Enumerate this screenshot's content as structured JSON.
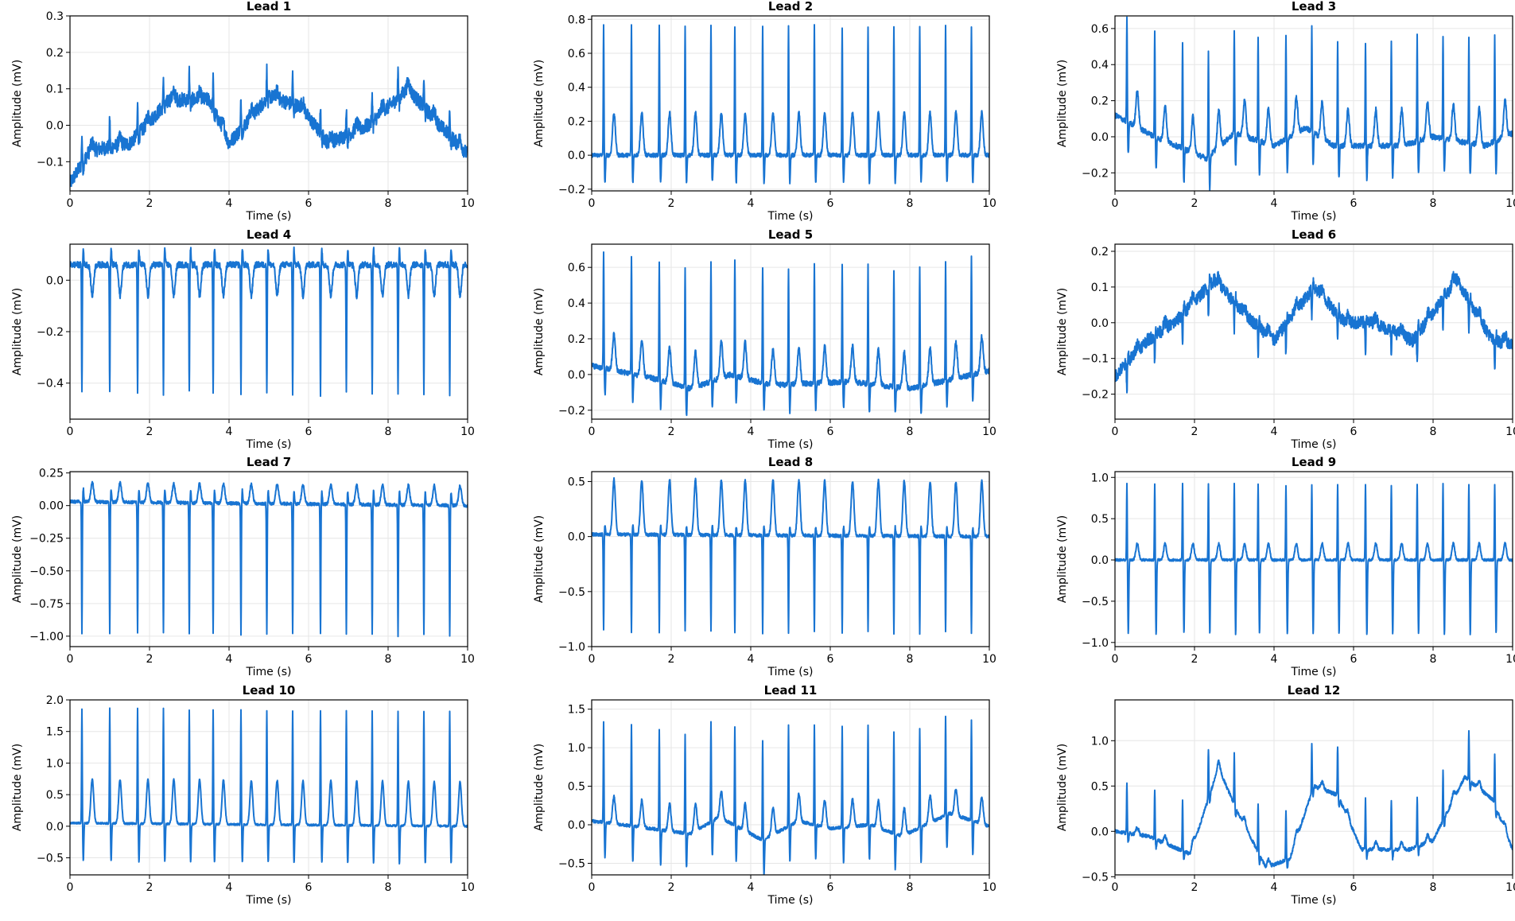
{
  "figure": {
    "line_color": "#1874d2",
    "grid_color": "#e6e6e6"
  },
  "chart_data": [
    {
      "type": "line",
      "title": "Lead 1",
      "xlabel": "Time (s)",
      "ylabel": "Amplitude (mV)",
      "xlim": [
        0,
        10
      ],
      "ylim": [
        -0.18,
        0.3
      ],
      "xticks": [
        0,
        2,
        4,
        6,
        8,
        10
      ],
      "yticks": [
        -0.1,
        0.0,
        0.1,
        0.2,
        0.3
      ],
      "ytick_labels": [
        "−0.1",
        "0.0",
        "0.1",
        "0.2",
        "0.3"
      ],
      "beat_times": [
        0.3,
        1.0,
        1.7,
        2.35,
        3.0,
        3.6,
        4.3,
        4.95,
        5.6,
        6.3,
        6.95,
        7.6,
        8.25,
        8.9,
        9.55
      ],
      "r_amp": 0.08,
      "s_amp": -0.02,
      "t_amp": 0.02,
      "noise": 0.02,
      "baseline": [
        [
          0,
          -0.16
        ],
        [
          0.5,
          -0.07
        ],
        [
          1.5,
          -0.05
        ],
        [
          2.5,
          0.07
        ],
        [
          3.5,
          0.07
        ],
        [
          4.0,
          -0.05
        ],
        [
          5.0,
          0.08
        ],
        [
          5.8,
          0.05
        ],
        [
          6.5,
          -0.05
        ],
        [
          7.5,
          0.0
        ],
        [
          8.5,
          0.1
        ],
        [
          9.3,
          0.0
        ],
        [
          10,
          -0.08
        ]
      ],
      "series": [
        {
          "name": "Lead 1"
        }
      ]
    },
    {
      "type": "line",
      "title": "Lead 2",
      "xlabel": "Time (s)",
      "ylabel": "Amplitude (mV)",
      "xlim": [
        0,
        10
      ],
      "ylim": [
        -0.21,
        0.82
      ],
      "xticks": [
        0,
        2,
        4,
        6,
        8,
        10
      ],
      "yticks": [
        -0.2,
        0.0,
        0.2,
        0.4,
        0.6,
        0.8
      ],
      "ytick_labels": [
        "−0.2",
        "0.0",
        "0.2",
        "0.4",
        "0.6",
        "0.8"
      ],
      "beat_times": [
        0.3,
        1.0,
        1.7,
        2.35,
        3.0,
        3.6,
        4.3,
        4.95,
        5.6,
        6.3,
        6.95,
        7.6,
        8.25,
        8.9,
        9.55
      ],
      "r_amp": 0.76,
      "s_amp": -0.16,
      "t_amp": 0.25,
      "noise": 0.012,
      "baseline": [
        [
          0,
          0.0
        ],
        [
          10,
          0.0
        ]
      ],
      "series": [
        {
          "name": "Lead 2"
        }
      ]
    },
    {
      "type": "line",
      "title": "Lead 3",
      "xlabel": "Time (s)",
      "ylabel": "Amplitude (mV)",
      "xlim": [
        0,
        10
      ],
      "ylim": [
        -0.3,
        0.67
      ],
      "xticks": [
        0,
        2,
        4,
        6,
        8,
        10
      ],
      "yticks": [
        -0.2,
        0.0,
        0.2,
        0.4,
        0.6
      ],
      "ytick_labels": [
        "−0.2",
        "0.0",
        "0.2",
        "0.4",
        "0.6"
      ],
      "beat_times": [
        0.3,
        1.0,
        1.7,
        2.35,
        3.0,
        3.6,
        4.3,
        4.95,
        5.6,
        6.3,
        6.95,
        7.6,
        8.25,
        8.9,
        9.55
      ],
      "r_amp": 0.58,
      "s_amp": -0.18,
      "t_amp": 0.2,
      "noise": 0.015,
      "baseline": [
        [
          0,
          0.12
        ],
        [
          1.0,
          0.0
        ],
        [
          2.3,
          -0.12
        ],
        [
          3.0,
          0.02
        ],
        [
          4.0,
          -0.05
        ],
        [
          4.8,
          0.05
        ],
        [
          5.5,
          -0.05
        ],
        [
          7.2,
          -0.05
        ],
        [
          8.0,
          0.0
        ],
        [
          9.3,
          -0.05
        ],
        [
          10,
          0.02
        ]
      ],
      "series": [
        {
          "name": "Lead 3"
        }
      ]
    },
    {
      "type": "line",
      "title": "Lead 4",
      "xlabel": "Time (s)",
      "ylabel": "Amplitude (mV)",
      "xlim": [
        0,
        10
      ],
      "ylim": [
        -0.54,
        0.14
      ],
      "xticks": [
        0,
        2,
        4,
        6,
        8,
        10
      ],
      "yticks": [
        -0.4,
        -0.2,
        0.0
      ],
      "ytick_labels": [
        "−0.4",
        "−0.2",
        "0.0"
      ],
      "beat_times": [
        0.3,
        1.0,
        1.7,
        2.35,
        3.0,
        3.6,
        4.3,
        4.95,
        5.6,
        6.3,
        6.95,
        7.6,
        8.25,
        8.9,
        9.55
      ],
      "r_amp": -0.5,
      "s_amp": 0.06,
      "t_amp": -0.12,
      "noise": 0.012,
      "baseline": [
        [
          0,
          0.06
        ],
        [
          10,
          0.06
        ]
      ],
      "series": [
        {
          "name": "Lead 4"
        }
      ]
    },
    {
      "type": "line",
      "title": "Lead 5",
      "xlabel": "Time (s)",
      "ylabel": "Amplitude (mV)",
      "xlim": [
        0,
        10
      ],
      "ylim": [
        -0.25,
        0.73
      ],
      "xticks": [
        0,
        2,
        4,
        6,
        8,
        10
      ],
      "yticks": [
        -0.2,
        0.0,
        0.2,
        0.4,
        0.6
      ],
      "ytick_labels": [
        "−0.2",
        "0.0",
        "0.2",
        "0.4",
        "0.6"
      ],
      "beat_times": [
        0.3,
        1.0,
        1.7,
        2.35,
        3.0,
        3.6,
        4.3,
        4.95,
        5.6,
        6.3,
        6.95,
        7.6,
        8.25,
        8.9,
        9.55
      ],
      "r_amp": 0.66,
      "s_amp": -0.15,
      "t_amp": 0.2,
      "noise": 0.015,
      "baseline": [
        [
          0,
          0.05
        ],
        [
          1.5,
          -0.02
        ],
        [
          2.5,
          -0.08
        ],
        [
          3.5,
          0.0
        ],
        [
          4.5,
          -0.06
        ],
        [
          6.5,
          -0.04
        ],
        [
          8.0,
          -0.08
        ],
        [
          9.2,
          -0.02
        ],
        [
          10,
          0.02
        ]
      ],
      "series": [
        {
          "name": "Lead 5"
        }
      ]
    },
    {
      "type": "line",
      "title": "Lead 6",
      "xlabel": "Time (s)",
      "ylabel": "Amplitude (mV)",
      "xlim": [
        0,
        10
      ],
      "ylim": [
        -0.27,
        0.22
      ],
      "xticks": [
        0,
        2,
        4,
        6,
        8,
        10
      ],
      "yticks": [
        -0.2,
        -0.1,
        0.0,
        0.1,
        0.2
      ],
      "ytick_labels": [
        "−0.2",
        "−0.1",
        "0.0",
        "0.1",
        "0.2"
      ],
      "beat_times": [
        0.3,
        1.0,
        1.7,
        2.35,
        3.0,
        3.6,
        4.3,
        4.95,
        5.6,
        6.3,
        6.95,
        7.6,
        8.25,
        8.9,
        9.55
      ],
      "r_amp": -0.08,
      "s_amp": 0.02,
      "t_amp": 0.02,
      "noise": 0.018,
      "baseline": [
        [
          0,
          -0.15
        ],
        [
          0.8,
          -0.05
        ],
        [
          1.5,
          0.0
        ],
        [
          2.5,
          0.12
        ],
        [
          3.3,
          0.02
        ],
        [
          4.0,
          -0.05
        ],
        [
          5.0,
          0.1
        ],
        [
          5.8,
          0.0
        ],
        [
          6.5,
          0.0
        ],
        [
          7.5,
          -0.05
        ],
        [
          8.6,
          0.12
        ],
        [
          9.5,
          -0.05
        ],
        [
          10,
          -0.06
        ]
      ],
      "series": [
        {
          "name": "Lead 6"
        }
      ]
    },
    {
      "type": "line",
      "title": "Lead 7",
      "xlabel": "Time (s)",
      "ylabel": "Amplitude (mV)",
      "xlim": [
        0,
        10
      ],
      "ylim": [
        -1.08,
        0.26
      ],
      "xticks": [
        0,
        2,
        4,
        6,
        8,
        10
      ],
      "yticks": [
        -1.0,
        -0.75,
        -0.5,
        -0.25,
        0.0,
        0.25
      ],
      "ytick_labels": [
        "−1.00",
        "−0.75",
        "−0.50",
        "−0.25",
        "0.00",
        "0.25"
      ],
      "beat_times": [
        0.3,
        1.0,
        1.7,
        2.35,
        3.0,
        3.6,
        4.3,
        4.95,
        5.6,
        6.3,
        6.95,
        7.6,
        8.25,
        8.9,
        9.55
      ],
      "r_amp": -1.0,
      "s_amp": 0.1,
      "t_amp": 0.15,
      "noise": 0.012,
      "baseline": [
        [
          0,
          0.03
        ],
        [
          10,
          0.0
        ]
      ],
      "series": [
        {
          "name": "Lead 7"
        }
      ]
    },
    {
      "type": "line",
      "title": "Lead 8",
      "xlabel": "Time (s)",
      "ylabel": "Amplitude (mV)",
      "xlim": [
        0,
        10
      ],
      "ylim": [
        -1.0,
        0.59
      ],
      "xticks": [
        0,
        2,
        4,
        6,
        8,
        10
      ],
      "yticks": [
        -1.0,
        -0.5,
        0.0,
        0.5
      ],
      "ytick_labels": [
        "−1.0",
        "−0.5",
        "0.0",
        "0.5"
      ],
      "beat_times": [
        0.3,
        1.0,
        1.7,
        2.35,
        3.0,
        3.6,
        4.3,
        4.95,
        5.6,
        6.3,
        6.95,
        7.6,
        8.25,
        8.9,
        9.55
      ],
      "r_amp": -0.88,
      "s_amp": 0.08,
      "t_amp": 0.5,
      "noise": 0.015,
      "baseline": [
        [
          0,
          0.02
        ],
        [
          10,
          0.0
        ]
      ],
      "series": [
        {
          "name": "Lead 8"
        }
      ]
    },
    {
      "type": "line",
      "title": "Lead 9",
      "xlabel": "Time (s)",
      "ylabel": "Amplitude (mV)",
      "xlim": [
        0,
        10
      ],
      "ylim": [
        -1.05,
        1.07
      ],
      "xticks": [
        0,
        2,
        4,
        6,
        8,
        10
      ],
      "yticks": [
        -1.0,
        -0.5,
        0.0,
        0.5,
        1.0
      ],
      "ytick_labels": [
        "−1.0",
        "−0.5",
        "0.0",
        "0.5",
        "1.0"
      ],
      "beat_times": [
        0.3,
        1.0,
        1.7,
        2.35,
        3.0,
        3.6,
        4.3,
        4.95,
        5.6,
        6.3,
        6.95,
        7.6,
        8.25,
        8.9,
        9.55
      ],
      "r_amp": 0.92,
      "s_amp": -0.9,
      "t_amp": 0.2,
      "noise": 0.015,
      "baseline": [
        [
          0,
          0.0
        ],
        [
          10,
          0.0
        ]
      ],
      "series": [
        {
          "name": "Lead 9"
        }
      ]
    },
    {
      "type": "line",
      "title": "Lead 10",
      "xlabel": "Time (s)",
      "ylabel": "Amplitude (mV)",
      "xlim": [
        0,
        10
      ],
      "ylim": [
        -0.77,
        2.0
      ],
      "xticks": [
        0,
        2,
        4,
        6,
        8,
        10
      ],
      "yticks": [
        -0.5,
        0.0,
        0.5,
        1.0,
        1.5,
        2.0
      ],
      "ytick_labels": [
        "−0.5",
        "0.0",
        "0.5",
        "1.0",
        "1.5",
        "2.0"
      ],
      "beat_times": [
        0.3,
        1.0,
        1.7,
        2.35,
        3.0,
        3.6,
        4.3,
        4.95,
        5.6,
        6.3,
        6.95,
        7.6,
        8.25,
        8.9,
        9.55
      ],
      "r_amp": 1.82,
      "s_amp": -0.6,
      "t_amp": 0.7,
      "noise": 0.015,
      "baseline": [
        [
          0,
          0.05
        ],
        [
          10,
          0.0
        ]
      ],
      "series": [
        {
          "name": "Lead 10"
        }
      ]
    },
    {
      "type": "line",
      "title": "Lead 11",
      "xlabel": "Time (s)",
      "ylabel": "Amplitude (mV)",
      "xlim": [
        0,
        10
      ],
      "ylim": [
        -0.65,
        1.62
      ],
      "xticks": [
        0,
        2,
        4,
        6,
        8,
        10
      ],
      "yticks": [
        -0.5,
        0.0,
        0.5,
        1.0,
        1.5
      ],
      "ytick_labels": [
        "−0.5",
        "0.0",
        "0.5",
        "1.0",
        "1.5"
      ],
      "beat_times": [
        0.3,
        1.0,
        1.7,
        2.35,
        3.0,
        3.6,
        4.3,
        4.95,
        5.6,
        6.3,
        6.95,
        7.6,
        8.25,
        8.9,
        9.55
      ],
      "r_amp": 1.3,
      "s_amp": -0.45,
      "t_amp": 0.35,
      "noise": 0.02,
      "baseline": [
        [
          0,
          0.05
        ],
        [
          1.5,
          -0.05
        ],
        [
          2.5,
          -0.12
        ],
        [
          3.2,
          0.1
        ],
        [
          4.3,
          -0.2
        ],
        [
          5.2,
          0.05
        ],
        [
          6.0,
          -0.05
        ],
        [
          7.0,
          0.0
        ],
        [
          7.8,
          -0.15
        ],
        [
          9.0,
          0.15
        ],
        [
          10,
          -0.02
        ]
      ],
      "series": [
        {
          "name": "Lead 11"
        }
      ]
    },
    {
      "type": "line",
      "title": "Lead 12",
      "xlabel": "Time (s)",
      "ylabel": "Amplitude (mV)",
      "xlim": [
        0,
        10
      ],
      "ylim": [
        -0.48,
        1.45
      ],
      "xticks": [
        0,
        2,
        4,
        6,
        8,
        10
      ],
      "yticks": [
        -0.5,
        0.0,
        0.5,
        1.0
      ],
      "ytick_labels": [
        "−0.5",
        "0.0",
        "0.5",
        "1.0"
      ],
      "beat_times": [
        0.3,
        1.0,
        1.7,
        2.35,
        3.0,
        3.6,
        4.3,
        4.95,
        5.6,
        6.3,
        6.95,
        7.6,
        8.25,
        8.9,
        9.55
      ],
      "r_amp": 0.55,
      "s_amp": -0.1,
      "t_amp": 0.08,
      "noise": 0.02,
      "baseline": [
        [
          0,
          0.0
        ],
        [
          0.8,
          -0.05
        ],
        [
          1.9,
          -0.25
        ],
        [
          2.6,
          0.7
        ],
        [
          3.1,
          0.2
        ],
        [
          3.8,
          -0.4
        ],
        [
          4.4,
          -0.3
        ],
        [
          5.0,
          0.5
        ],
        [
          5.6,
          0.4
        ],
        [
          6.2,
          -0.2
        ],
        [
          7.4,
          -0.2
        ],
        [
          8.0,
          -0.1
        ],
        [
          8.8,
          0.6
        ],
        [
          9.5,
          0.35
        ],
        [
          10,
          -0.2
        ]
      ],
      "series": [
        {
          "name": "Lead 12"
        }
      ]
    }
  ]
}
